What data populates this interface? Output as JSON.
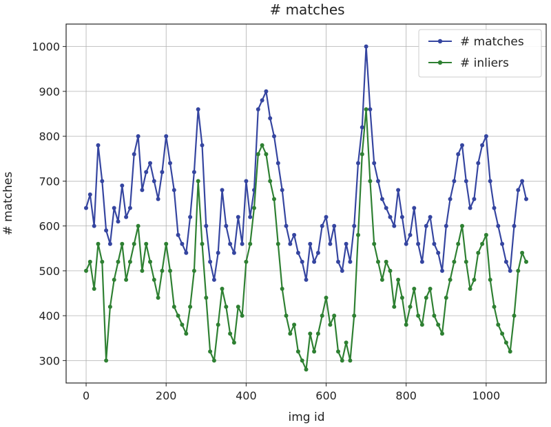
{
  "chart_data": {
    "type": "line",
    "title": "# matches",
    "xlabel": "img id",
    "ylabel": "# matches",
    "xlim": [
      -50,
      1150
    ],
    "ylim": [
      250,
      1050
    ],
    "x_ticks": [
      0,
      200,
      400,
      600,
      800,
      1000
    ],
    "y_ticks": [
      300,
      400,
      500,
      600,
      700,
      800,
      900,
      1000
    ],
    "grid": true,
    "legend_position": "top-right",
    "colors": {
      "matches": "#3545a0",
      "inliers": "#2e8032"
    },
    "series": [
      {
        "name": "# matches",
        "color": "#3545a0",
        "x": [
          0,
          10,
          20,
          30,
          40,
          50,
          60,
          70,
          80,
          90,
          100,
          110,
          120,
          130,
          140,
          150,
          160,
          170,
          180,
          190,
          200,
          210,
          220,
          230,
          240,
          250,
          260,
          270,
          280,
          290,
          300,
          310,
          320,
          330,
          340,
          350,
          360,
          370,
          380,
          390,
          400,
          410,
          420,
          430,
          440,
          450,
          460,
          470,
          480,
          490,
          500,
          510,
          520,
          530,
          540,
          550,
          560,
          570,
          580,
          590,
          600,
          610,
          620,
          630,
          640,
          650,
          660,
          670,
          680,
          690,
          700,
          710,
          720,
          730,
          740,
          750,
          760,
          770,
          780,
          790,
          800,
          810,
          820,
          830,
          840,
          850,
          860,
          870,
          880,
          890,
          900,
          910,
          920,
          930,
          940,
          950,
          960,
          970,
          980,
          990,
          1000,
          1010,
          1020,
          1030,
          1040,
          1050,
          1060,
          1070,
          1080,
          1090,
          1100
        ],
        "y": [
          640,
          670,
          600,
          780,
          700,
          590,
          560,
          640,
          610,
          690,
          620,
          640,
          760,
          800,
          680,
          720,
          740,
          700,
          660,
          720,
          800,
          740,
          680,
          580,
          560,
          540,
          620,
          720,
          860,
          780,
          600,
          520,
          480,
          540,
          680,
          600,
          560,
          540,
          620,
          560,
          700,
          620,
          680,
          860,
          880,
          900,
          840,
          800,
          740,
          680,
          600,
          560,
          580,
          540,
          520,
          480,
          560,
          520,
          540,
          600,
          620,
          560,
          600,
          520,
          500,
          560,
          520,
          600,
          740,
          820,
          1000,
          860,
          740,
          700,
          660,
          640,
          620,
          600,
          680,
          620,
          560,
          580,
          640,
          560,
          520,
          600,
          620,
          560,
          540,
          500,
          600,
          660,
          700,
          760,
          780,
          700,
          640,
          660,
          740,
          780,
          800,
          700,
          640,
          600,
          560,
          520,
          500,
          600,
          680,
          700,
          660
        ]
      },
      {
        "name": "# inliers",
        "color": "#2e8032",
        "x": [
          0,
          10,
          20,
          30,
          40,
          50,
          60,
          70,
          80,
          90,
          100,
          110,
          120,
          130,
          140,
          150,
          160,
          170,
          180,
          190,
          200,
          210,
          220,
          230,
          240,
          250,
          260,
          270,
          280,
          290,
          300,
          310,
          320,
          330,
          340,
          350,
          360,
          370,
          380,
          390,
          400,
          410,
          420,
          430,
          440,
          450,
          460,
          470,
          480,
          490,
          500,
          510,
          520,
          530,
          540,
          550,
          560,
          570,
          580,
          590,
          600,
          610,
          620,
          630,
          640,
          650,
          660,
          670,
          680,
          690,
          700,
          710,
          720,
          730,
          740,
          750,
          760,
          770,
          780,
          790,
          800,
          810,
          820,
          830,
          840,
          850,
          860,
          870,
          880,
          890,
          900,
          910,
          920,
          930,
          940,
          950,
          960,
          970,
          980,
          990,
          1000,
          1010,
          1020,
          1030,
          1040,
          1050,
          1060,
          1070,
          1080,
          1090,
          1100
        ],
        "y": [
          500,
          520,
          460,
          560,
          520,
          300,
          420,
          480,
          520,
          560,
          480,
          520,
          560,
          600,
          500,
          560,
          520,
          480,
          440,
          500,
          560,
          500,
          420,
          400,
          380,
          360,
          420,
          500,
          700,
          560,
          440,
          320,
          300,
          380,
          460,
          420,
          360,
          340,
          420,
          400,
          520,
          560,
          640,
          760,
          780,
          760,
          700,
          660,
          560,
          460,
          400,
          360,
          380,
          320,
          300,
          280,
          360,
          320,
          360,
          400,
          440,
          380,
          400,
          320,
          300,
          340,
          300,
          400,
          580,
          760,
          860,
          700,
          560,
          520,
          480,
          520,
          500,
          420,
          480,
          440,
          380,
          420,
          460,
          400,
          380,
          440,
          460,
          400,
          380,
          360,
          440,
          480,
          520,
          560,
          600,
          520,
          460,
          480,
          540,
          560,
          580,
          480,
          420,
          380,
          360,
          340,
          320,
          400,
          500,
          540,
          520
        ]
      }
    ]
  }
}
